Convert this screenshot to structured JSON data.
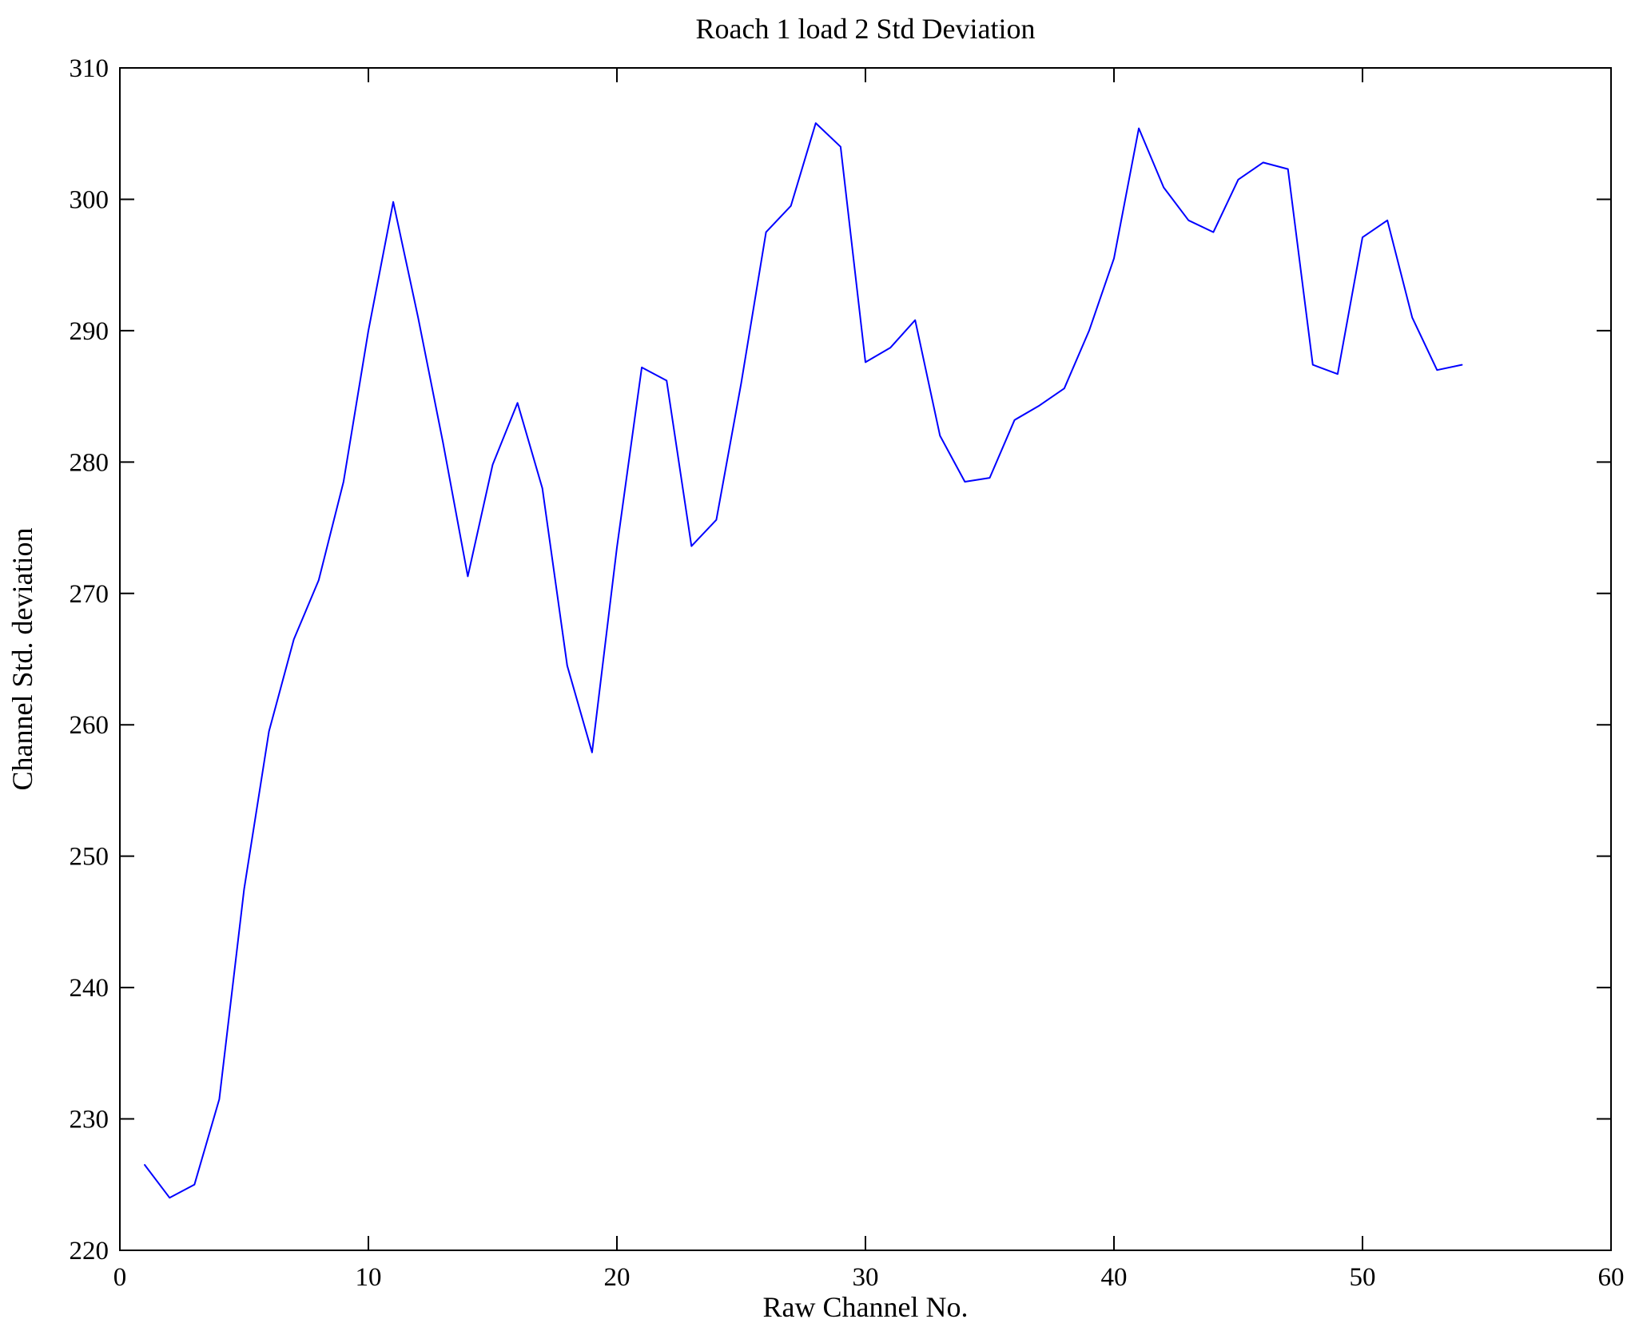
{
  "figure": {
    "title": "Roach 1 load 2 Std Deviation",
    "xlabel": "Raw Channel No.",
    "ylabel": "Channel Std. deviation"
  },
  "chart_data": {
    "type": "line",
    "title": "Roach 1 load 2 Std Deviation",
    "xlabel": "Raw Channel No.",
    "ylabel": "Channel Std. deviation",
    "xlim": [
      0,
      60
    ],
    "ylim": [
      220,
      310
    ],
    "x_ticks": [
      0,
      10,
      20,
      30,
      40,
      50,
      60
    ],
    "y_ticks": [
      220,
      230,
      240,
      250,
      260,
      270,
      280,
      290,
      300,
      310
    ],
    "grid": false,
    "legend_position": "none",
    "line_color": "#0000ff",
    "axis_color": "#000000",
    "x": [
      1,
      2,
      3,
      4,
      5,
      6,
      7,
      8,
      9,
      10,
      11,
      12,
      13,
      14,
      15,
      16,
      17,
      18,
      19,
      20,
      21,
      22,
      23,
      24,
      25,
      26,
      27,
      28,
      29,
      30,
      31,
      32,
      33,
      34,
      35,
      36,
      37,
      38,
      39,
      40,
      41,
      42,
      43,
      44,
      45,
      46,
      47,
      48,
      49,
      50,
      51,
      52,
      53,
      54
    ],
    "y": [
      226.5,
      224.0,
      225.0,
      231.5,
      247.5,
      259.5,
      266.5,
      271.0,
      278.5,
      290.0,
      299.8,
      291.0,
      281.5,
      271.3,
      279.8,
      284.5,
      278.0,
      264.5,
      257.9,
      273.5,
      287.2,
      286.2,
      273.6,
      275.6,
      286.0,
      297.5,
      299.5,
      305.8,
      304.0,
      287.6,
      288.7,
      290.8,
      282.0,
      278.5,
      278.8,
      283.2,
      284.3,
      285.6,
      290.0,
      295.5,
      305.4,
      300.9,
      298.4,
      297.5,
      301.5,
      302.8,
      302.3,
      287.4,
      286.7,
      297.1,
      298.4,
      291.0,
      287.0,
      287.4
    ]
  }
}
